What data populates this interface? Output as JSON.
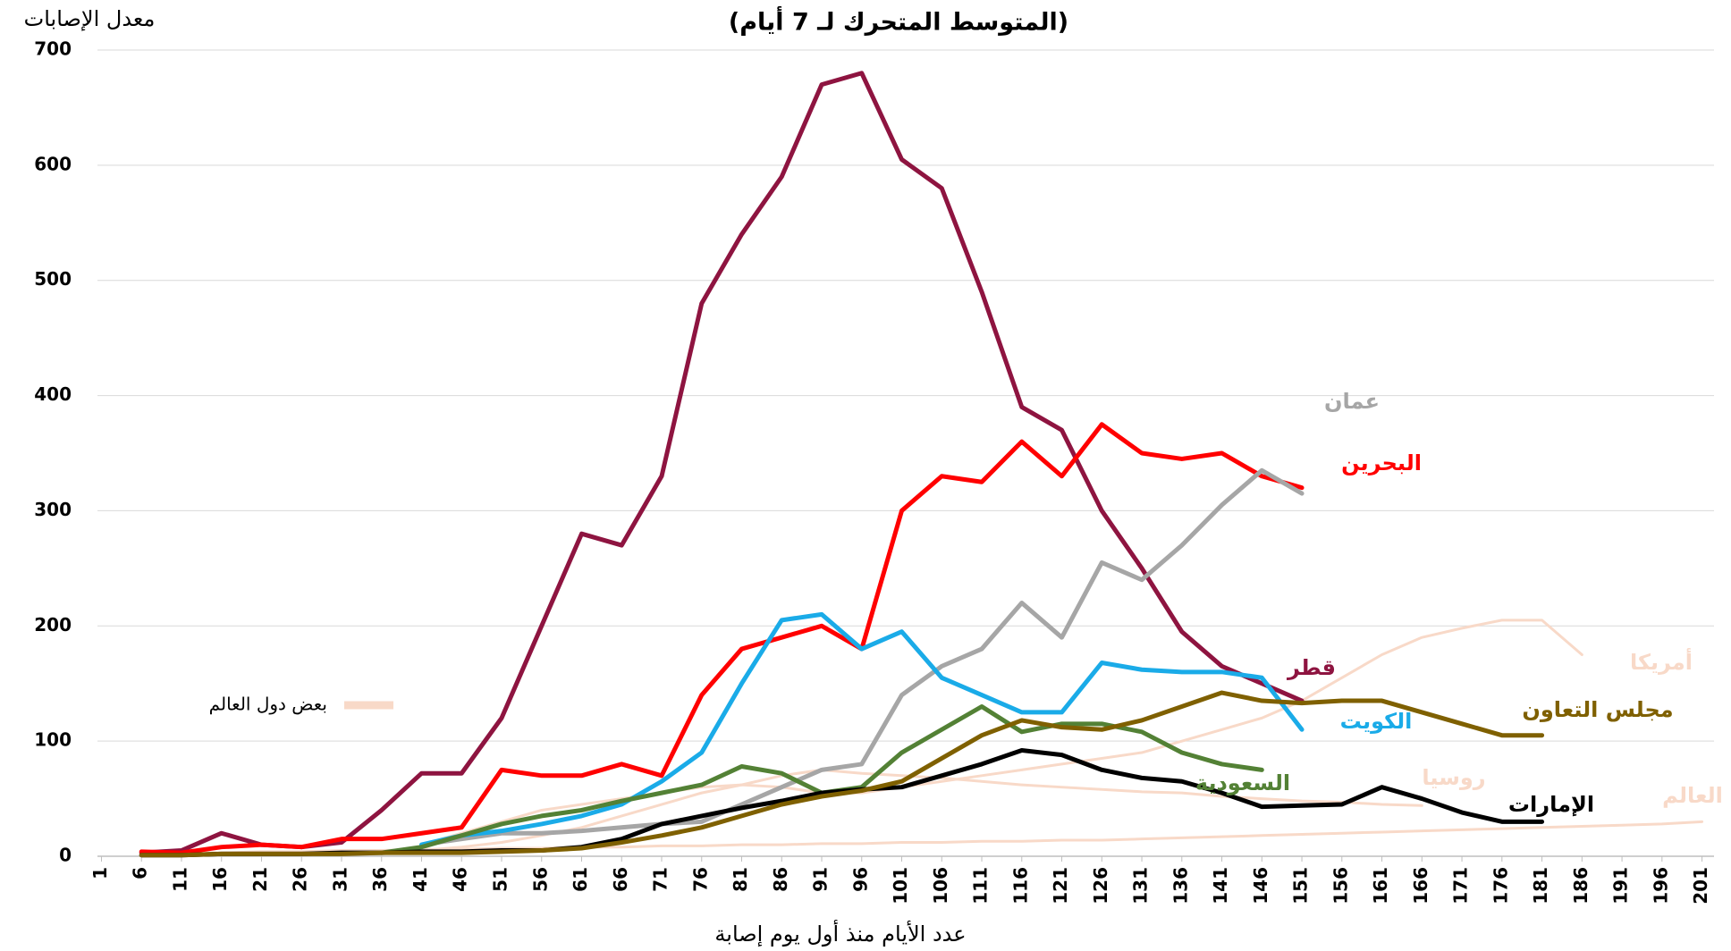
{
  "chart_data": {
    "type": "line",
    "title": "(المتوسط المتحرك لـ 7 أيام)",
    "y_label": "معدل الإصابات",
    "x_label": "عدد الأيام منذ أول يوم إصابة",
    "legend": {
      "label": "بعض دول العالم",
      "color": "#f8d9c8"
    },
    "grid": true,
    "xlim": [
      0.5,
      202.5
    ],
    "ylim": [
      0,
      700
    ],
    "yticks": [
      0,
      100,
      200,
      300,
      400,
      500,
      600,
      700
    ],
    "xticks": [
      1,
      6,
      11,
      16,
      21,
      26,
      31,
      36,
      41,
      46,
      51,
      56,
      61,
      66,
      71,
      76,
      81,
      86,
      91,
      96,
      101,
      106,
      111,
      116,
      121,
      126,
      131,
      136,
      141,
      146,
      151,
      156,
      161,
      166,
      171,
      176,
      181,
      186,
      191,
      196,
      201
    ],
    "x": [
      6,
      11,
      16,
      21,
      26,
      31,
      36,
      41,
      46,
      51,
      56,
      61,
      66,
      71,
      76,
      81,
      86,
      91,
      96,
      101,
      106,
      111,
      116,
      121,
      126,
      131,
      136,
      141,
      146,
      151,
      156,
      161,
      166,
      171,
      176,
      181,
      186,
      191,
      196,
      201
    ],
    "series": [
      {
        "name": "قطر",
        "color": "#8e1440",
        "values": [
          3,
          5,
          20,
          10,
          8,
          12,
          40,
          72,
          72,
          120,
          200,
          280,
          270,
          330,
          480,
          540,
          590,
          670,
          680,
          605,
          580,
          490,
          390,
          370,
          300,
          250,
          195,
          165,
          150,
          135,
          null,
          null,
          null,
          null,
          null,
          null,
          null,
          null,
          null,
          null
        ]
      },
      {
        "name": "البحرين",
        "color": "#ff0000",
        "values": [
          4,
          3,
          8,
          10,
          8,
          15,
          15,
          20,
          25,
          75,
          70,
          70,
          80,
          70,
          140,
          180,
          190,
          200,
          180,
          300,
          330,
          325,
          360,
          330,
          375,
          350,
          345,
          350,
          330,
          320,
          null,
          null,
          null,
          null,
          null,
          null,
          null,
          null,
          null,
          null
        ]
      },
      {
        "name": "عمان",
        "color": "#a6a6a6",
        "values": [
          null,
          null,
          null,
          null,
          null,
          null,
          null,
          10,
          15,
          20,
          20,
          22,
          25,
          28,
          30,
          45,
          60,
          75,
          80,
          140,
          165,
          180,
          220,
          190,
          255,
          240,
          270,
          305,
          335,
          315,
          null,
          null,
          null,
          null,
          null,
          null,
          null,
          null,
          null,
          null
        ]
      },
      {
        "name": "الكويت",
        "color": "#1aabe8",
        "values": [
          null,
          null,
          null,
          null,
          null,
          null,
          null,
          10,
          18,
          22,
          28,
          35,
          45,
          65,
          90,
          150,
          205,
          210,
          180,
          195,
          155,
          140,
          125,
          125,
          168,
          162,
          160,
          160,
          155,
          110,
          null,
          null,
          null,
          null,
          null,
          null,
          null,
          null,
          null,
          null
        ]
      },
      {
        "name": "السعودية",
        "color": "#538135",
        "values": [
          null,
          null,
          null,
          null,
          null,
          null,
          3,
          8,
          18,
          28,
          35,
          40,
          48,
          55,
          62,
          78,
          72,
          55,
          60,
          90,
          110,
          130,
          108,
          115,
          115,
          108,
          90,
          80,
          75,
          null,
          null,
          null,
          null,
          null,
          null,
          null,
          null,
          null,
          null,
          null
        ]
      },
      {
        "name": "الإمارات",
        "color": "#000000",
        "values": [
          1,
          1,
          2,
          2,
          2,
          3,
          3,
          4,
          4,
          5,
          5,
          8,
          15,
          28,
          35,
          42,
          48,
          55,
          58,
          60,
          70,
          80,
          92,
          88,
          75,
          68,
          65,
          55,
          43,
          44,
          45,
          60,
          50,
          38,
          30,
          30,
          null,
          null,
          null,
          null
        ]
      },
      {
        "name": "مجلس التعاون",
        "color": "#7f6000",
        "values": [
          1,
          1,
          2,
          2,
          2,
          2,
          3,
          3,
          3,
          4,
          5,
          7,
          12,
          18,
          25,
          35,
          45,
          52,
          57,
          65,
          85,
          105,
          118,
          112,
          110,
          118,
          130,
          142,
          135,
          133,
          135,
          135,
          125,
          115,
          105,
          105,
          null,
          null,
          null,
          null
        ]
      },
      {
        "name": "أمريكا",
        "color": "#f8d9c8",
        "values": [
          null,
          null,
          null,
          null,
          null,
          null,
          null,
          10,
          20,
          30,
          40,
          45,
          50,
          55,
          60,
          62,
          60,
          55,
          55,
          60,
          65,
          70,
          75,
          80,
          85,
          90,
          100,
          110,
          120,
          135,
          155,
          175,
          190,
          198,
          205,
          205,
          175,
          null,
          null,
          null
        ]
      },
      {
        "name": "روسيا",
        "color": "#f8d9c8",
        "values": [
          null,
          null,
          null,
          null,
          null,
          null,
          null,
          5,
          8,
          12,
          18,
          25,
          35,
          45,
          55,
          62,
          70,
          75,
          72,
          70,
          68,
          65,
          62,
          60,
          58,
          56,
          55,
          52,
          50,
          48,
          47,
          45,
          44,
          null,
          null,
          null,
          null,
          null,
          null,
          null
        ]
      },
      {
        "name": "العالم",
        "color": "#f8d9c8",
        "values": [
          2,
          3,
          3,
          4,
          4,
          5,
          5,
          6,
          6,
          7,
          7,
          8,
          8,
          9,
          9,
          10,
          10,
          11,
          11,
          12,
          12,
          13,
          13,
          14,
          14,
          15,
          16,
          17,
          18,
          19,
          20,
          21,
          22,
          23,
          24,
          25,
          26,
          27,
          28,
          30
        ]
      }
    ]
  }
}
